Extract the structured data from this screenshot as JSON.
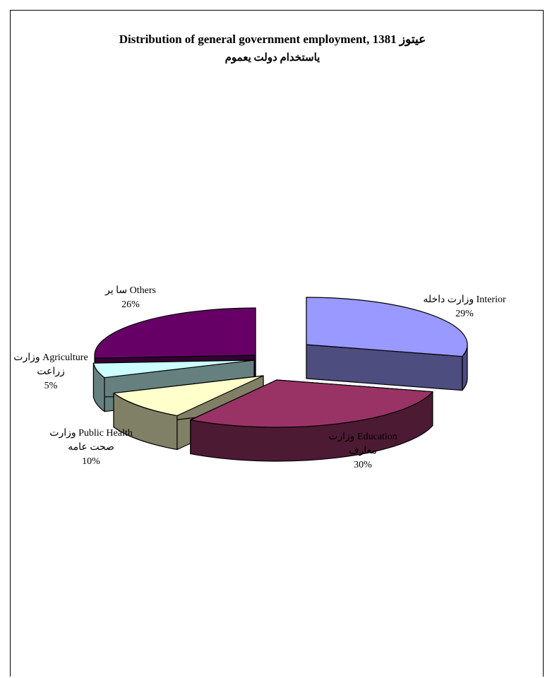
{
  "chart_data": {
    "type": "pie",
    "title_line1": "Distribution of general government employment, 1381 عیتوز",
    "title_line2": "یاستخدام دولت یعموم",
    "slices": [
      {
        "name_line1": "وزارت داخله Interior",
        "name_line2": "",
        "value": 29,
        "pct_label": "29%",
        "top_color": "#9999ff",
        "side_color": "#4d4d80"
      },
      {
        "name_line1": "وزارت Education",
        "name_line2": "معارف",
        "value": 30,
        "pct_label": "30%",
        "top_color": "#993366",
        "side_color": "#4d1a33"
      },
      {
        "name_line1": "وزارت Public Health",
        "name_line2": "صحت عامه",
        "value": 10,
        "pct_label": "10%",
        "top_color": "#ffffcc",
        "side_color": "#808066"
      },
      {
        "name_line1": "وزارت Agriculture",
        "name_line2": "زراعت",
        "value": 5,
        "pct_label": "5%",
        "top_color": "#ccffff",
        "side_color": "#668080"
      },
      {
        "name_line1": "سا یر Others",
        "name_line2": "",
        "value": 26,
        "pct_label": "26%",
        "top_color": "#660066",
        "side_color": "#330033"
      }
    ]
  }
}
